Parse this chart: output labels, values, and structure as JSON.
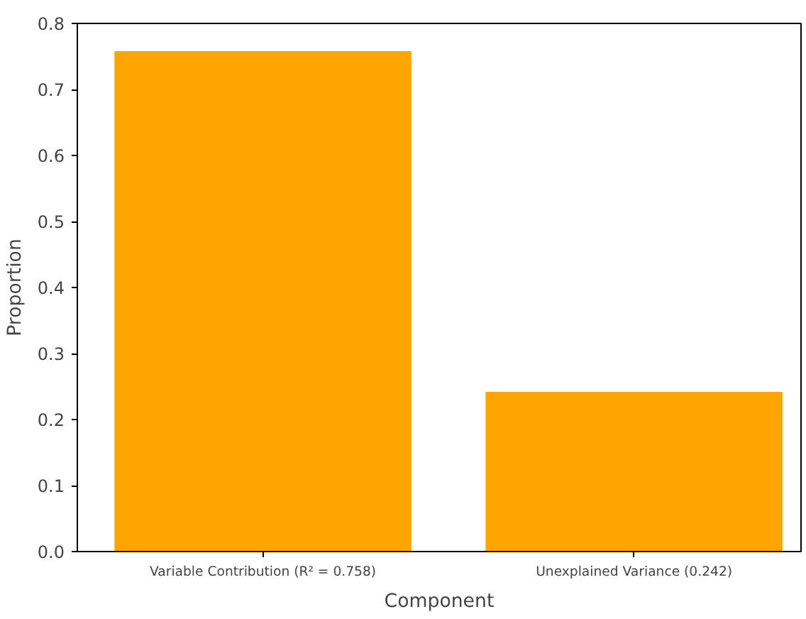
{
  "chart_data": {
    "type": "bar",
    "xlabel": "Component",
    "ylabel": "Proportion",
    "categories": [
      "Variable Contribution (R² = 0.758)",
      "Unexplained Variance (0.242)"
    ],
    "values": [
      0.758,
      0.242
    ],
    "color": "#ffa500",
    "ylim": [
      0,
      0.8
    ],
    "yticks": [
      {
        "value": 0,
        "label": "0.0"
      },
      {
        "value": 0.1,
        "label": "0.1"
      },
      {
        "value": 0.2,
        "label": "0.2"
      },
      {
        "value": 0.3,
        "label": "0.3"
      },
      {
        "value": 0.4,
        "label": "0.4"
      },
      {
        "value": 0.5,
        "label": "0.5"
      },
      {
        "value": 0.6,
        "label": "0.6"
      },
      {
        "value": 0.7,
        "label": "0.7"
      },
      {
        "value": 0.8,
        "label": "0.8"
      }
    ],
    "grid": false
  }
}
